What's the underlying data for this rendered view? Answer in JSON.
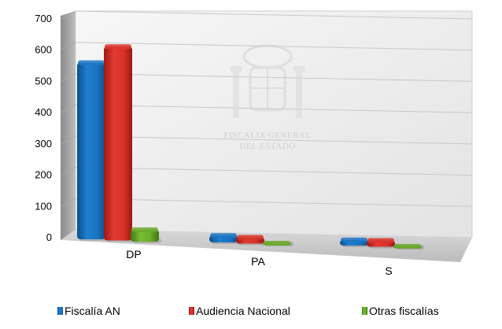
{
  "chart_data": {
    "type": "bar",
    "categories": [
      "DP",
      "PA",
      "S"
    ],
    "series": [
      {
        "name": "Fiscalía AN",
        "values": [
          565,
          22,
          18
        ],
        "color": "#1f77c4"
      },
      {
        "name": "Audiencia Nacional",
        "values": [
          620,
          20,
          20
        ],
        "color": "#d9342b"
      },
      {
        "name": "Otras fiscalías",
        "values": [
          38,
          2,
          3
        ],
        "color": "#6aaa2a"
      }
    ],
    "ylim": [
      0,
      700
    ],
    "yticks": [
      0,
      100,
      200,
      300,
      400,
      500,
      600,
      700
    ],
    "grid": true,
    "legend": "bottom",
    "style": "3d-perspective"
  },
  "watermark": {
    "lines": [
      "FISCALIA GENERAL",
      "DEL ESTADO"
    ],
    "icon": "coat-of-arms-icon"
  }
}
